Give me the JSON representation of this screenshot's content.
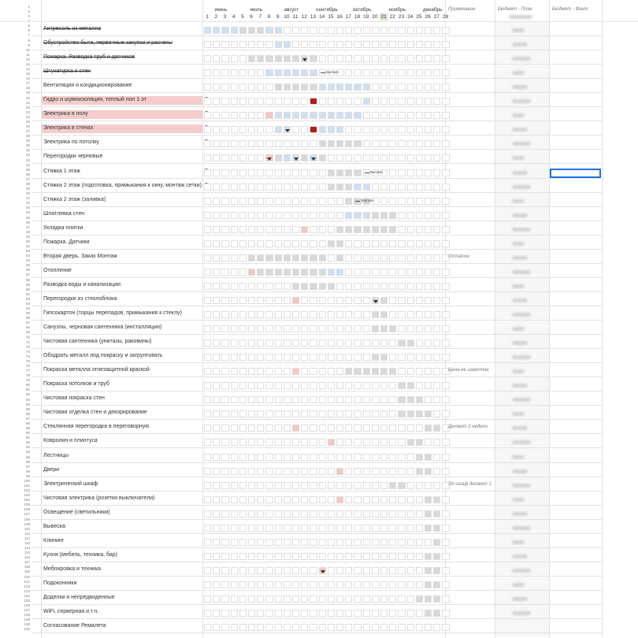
{
  "header": {
    "months": [
      "июнь",
      "июль",
      "август",
      "сентябрь",
      "октябрь",
      "ноябрь",
      "декабрь"
    ],
    "weeks": [
      "1",
      "2",
      "3",
      "4",
      "5",
      "6",
      "7",
      "8",
      "9",
      "10",
      "11",
      "12",
      "13",
      "14",
      "15",
      "16",
      "17",
      "18",
      "19",
      "20",
      "21",
      "22",
      "23",
      "24",
      "25",
      "26",
      "27",
      "28"
    ],
    "current_week": "21",
    "col_notes": "Примечание",
    "col_budget_plan": "Бюджет - План",
    "col_budget_fact": "Бюджет - Факт"
  },
  "row_numbers": [
    "1",
    "2",
    "3",
    "4",
    "5",
    "6",
    "7",
    "8",
    "9",
    "10",
    "11",
    "12",
    "13",
    "14",
    "15",
    "16",
    "17",
    "18",
    "19",
    "20",
    "21",
    "22",
    "23",
    "24",
    "25",
    "26",
    "27",
    "28",
    "29",
    "30",
    "31",
    "32",
    "33",
    "34",
    "35",
    "36",
    "37",
    "38",
    "39",
    "40",
    "41",
    "42",
    "43",
    "44",
    "45",
    "46",
    "47",
    "48",
    "49",
    "50",
    "51",
    "52",
    "53",
    "54",
    "55",
    "56",
    "57",
    "58",
    "59",
    "60",
    "61",
    "62",
    "63",
    "64",
    "65",
    "66",
    "67",
    "68",
    "69",
    "70",
    "71",
    "72",
    "73",
    "74",
    "75",
    "76",
    "77",
    "78",
    "79",
    "80",
    "81",
    "82",
    "83",
    "84",
    "85",
    "86",
    "87",
    "88",
    "89",
    "90",
    "91",
    "92",
    "93",
    "94",
    "95",
    "96",
    "97",
    "98",
    "99",
    "100",
    "101",
    "102",
    "103",
    "104",
    "105",
    "106",
    "107",
    "108",
    "109",
    "110",
    "111",
    "112",
    "113",
    "114",
    "115",
    "116",
    "117",
    "118",
    "119",
    "120",
    "121",
    "122",
    "123",
    "124",
    "125",
    "126",
    "127",
    "128",
    "129",
    "130",
    "131"
  ],
  "colors": {
    "blue": "#cfe0f2",
    "gray": "#d9d9d9",
    "pink": "#f4c7c3",
    "red": "#b81b1b",
    "task_highlight": "#f4cccc",
    "current_week": "#d9ead3",
    "selection": "#1a73e8"
  },
  "tasks": [
    {
      "name": "Антресоль из металла",
      "strike": true,
      "hl": false,
      "q": "",
      "note": "",
      "cells": {
        "1": "b",
        "2": "b",
        "3": "b",
        "4": "b",
        "5": "bg",
        "6": "bg",
        "7": "bg",
        "8": "b",
        "9": "b"
      }
    },
    {
      "name": "Обустройство быта, первичные закупки и расчеты",
      "strike": true,
      "hl": false,
      "q": "",
      "note": "",
      "cells": {
        "9": "b",
        "10": "b"
      }
    },
    {
      "name": "Пожарка. Разводка труб и датчиков",
      "strike": true,
      "hl": false,
      "q": "",
      "note": "",
      "cells": {
        "6": "g",
        "7": "g",
        "8": "g",
        "9": "g",
        "10": "g",
        "11": "g",
        "12": "g",
        "13": "g"
      },
      "marks": [
        12
      ]
    },
    {
      "name": "Штукатурка и стен",
      "strike": true,
      "hl": false,
      "q": "",
      "note": "",
      "cells": {
        "8": "b",
        "9": "b",
        "10": "b",
        "11": "b",
        "12": "b",
        "13": "b"
      },
      "arrow": {
        "week": 14,
        "text": "Samsen"
      }
    },
    {
      "name": "Вентиляция и кондиционирование",
      "strike": false,
      "hl": false,
      "q": "",
      "note": "",
      "cells": {
        "9": "g",
        "10": "g",
        "11": "g",
        "12": "g",
        "13": "g",
        "14": "b",
        "15": "b",
        "16": "b",
        "17": "b",
        "18": "b",
        "19": "b"
      }
    },
    {
      "name": "Гидро и шумоизоляция, теплый пол 1 эт",
      "strike": false,
      "hl": true,
      "q": "?",
      "note": "",
      "cells": {
        "13": "r",
        "19": "b"
      }
    },
    {
      "name": "Электрика в полу",
      "strike": false,
      "hl": true,
      "q": "?",
      "note": "",
      "cells": {
        "8": "p",
        "9": "b",
        "10": "b",
        "11": "b",
        "12": "b",
        "13": "b",
        "14": "b",
        "15": "b",
        "16": "b",
        "17": "b",
        "18": "b"
      }
    },
    {
      "name": "Электрика в стенах",
      "strike": false,
      "hl": true,
      "q": "?",
      "note": "",
      "cells": {
        "9": "b",
        "10": "b",
        "13": "r",
        "14": "b",
        "15": "b",
        "16": "b"
      },
      "marks": [
        10
      ]
    },
    {
      "name": "Электрика по потолку",
      "strike": false,
      "hl": false,
      "q": "?",
      "note": "",
      "cells": {
        "14": "g",
        "15": "g",
        "16": "g",
        "17": "g",
        "18": "g"
      }
    },
    {
      "name": "Перегородки черновые",
      "strike": false,
      "hl": false,
      "q": "",
      "note": "",
      "cells": {
        "8": "p",
        "9": "g",
        "10": "b",
        "11": "b",
        "12": "g",
        "13": "b",
        "14": "g"
      },
      "marks": [
        8,
        11,
        13
      ]
    },
    {
      "name": "Стяжка 1 этаж",
      "strike": false,
      "hl": false,
      "q": "?",
      "note": "",
      "cells": {
        "15": "g",
        "16": "g",
        "17": "g",
        "18": "g"
      },
      "arrow": {
        "week": 19,
        "text": "Samsen"
      }
    },
    {
      "name": "Стяжка 2 этаж (подготовка, примыкания к окну, монтаж сетки)",
      "strike": false,
      "hl": false,
      "q": "?",
      "note": "",
      "cells": {
        "15": "g",
        "16": "g",
        "17": "g",
        "18": "b",
        "19": "b"
      }
    },
    {
      "name": "Стяжка 2 этаж (заливка)",
      "strike": false,
      "hl": false,
      "q": "",
      "note": "",
      "cells": {
        "17": "g",
        "18": "g",
        "19": "g"
      },
      "arrow": {
        "week": 18,
        "text": "Samsen"
      }
    },
    {
      "name": "Шпатлевка стен",
      "strike": false,
      "hl": false,
      "q": "",
      "note": "",
      "cells": {
        "17": "b",
        "18": "b",
        "19": "b",
        "20": "g",
        "21": "g",
        "22": "g"
      }
    },
    {
      "name": "Укладка плитки",
      "strike": false,
      "hl": false,
      "q": "",
      "note": "",
      "cells": {
        "12": "p",
        "16": "g",
        "17": "g",
        "18": "g",
        "19": "g",
        "20": "g",
        "21": "g",
        "22": "g"
      }
    },
    {
      "name": "Пожарка. Датчики",
      "strike": false,
      "hl": false,
      "q": "",
      "note": "",
      "cells": {
        "15": "g",
        "16": "g"
      }
    },
    {
      "name": "Вторая дверь. Заказ Монтаж",
      "strike": false,
      "hl": false,
      "q": "",
      "note": "Остаток",
      "cells": {
        "6": "g",
        "7": "g",
        "8": "g",
        "9": "g",
        "10": "g",
        "11": "g",
        "12": "g",
        "13": "g",
        "14": "g",
        "16": "g"
      }
    },
    {
      "name": "Отопление",
      "strike": false,
      "hl": false,
      "q": "",
      "note": "",
      "cells": {
        "6": "p",
        "7": "g",
        "8": "g",
        "9": "g",
        "10": "g",
        "11": "g",
        "12": "g",
        "13": "g",
        "14": "g",
        "15": "b",
        "16": "b"
      }
    },
    {
      "name": "Разводка воды и канализации",
      "strike": false,
      "hl": false,
      "q": "",
      "note": "",
      "cells": {
        "11": "g",
        "12": "g",
        "13": "g",
        "14": "g",
        "15": "g"
      }
    },
    {
      "name": "Перегородки из стеклоблока",
      "strike": false,
      "hl": false,
      "q": "",
      "note": "",
      "cells": {
        "11": "p",
        "20": "g",
        "21": "g"
      },
      "marks": [
        20
      ]
    },
    {
      "name": "Гипсокартон (торцы перепадов, примыкания к стеклу)",
      "strike": false,
      "hl": false,
      "q": "",
      "note": "",
      "cells": {
        "20": "g",
        "21": "g"
      }
    },
    {
      "name": "Санузлы, черновая сантехника (инсталляции)",
      "strike": false,
      "hl": false,
      "q": "",
      "note": "",
      "cells": {
        "20": "g",
        "21": "g",
        "22": "g"
      }
    },
    {
      "name": "Чистовая сантехника (унитазы, раковины)",
      "strike": false,
      "hl": false,
      "q": "",
      "note": "",
      "cells": {
        "23": "g",
        "24": "g"
      }
    },
    {
      "name": "Ободрать металл под покраску и загрунтовать",
      "strike": false,
      "hl": false,
      "q": "",
      "note": "",
      "cells": {
        "20": "g",
        "21": "g"
      }
    },
    {
      "name": "Покраска металла огнезащитной краской",
      "strike": false,
      "hl": false,
      "q": "",
      "note": "Цена не известна",
      "cells": {
        "11": "p",
        "17": "g",
        "18": "g",
        "19": "g",
        "20": "g",
        "21": "g",
        "22": "g"
      }
    },
    {
      "name": "Покраска потолков и труб",
      "strike": false,
      "hl": false,
      "q": "",
      "note": "",
      "cells": {
        "23": "g",
        "24": "g"
      }
    },
    {
      "name": "Чистовая покраска стен",
      "strike": false,
      "hl": false,
      "q": "",
      "note": "",
      "cells": {
        "23": "g",
        "24": "g",
        "25": "g"
      }
    },
    {
      "name": "Чистовая отделка стен и декорирование",
      "strike": false,
      "hl": false,
      "q": "",
      "note": "",
      "cells": {
        "23": "g",
        "24": "g",
        "25": "g",
        "26": "g"
      }
    },
    {
      "name": "Стеклянная перегородка в переговорную",
      "strike": false,
      "hl": false,
      "q": "",
      "note": "Делают 2 недели",
      "cells": {
        "11": "p",
        "26": "g",
        "27": "g"
      }
    },
    {
      "name": "Ковролин и плинтуса",
      "strike": false,
      "hl": false,
      "q": "",
      "note": "",
      "cells": {
        "15": "p",
        "24": "g",
        "25": "g"
      }
    },
    {
      "name": "Лестницы",
      "strike": false,
      "hl": false,
      "q": "",
      "note": "",
      "cells": {
        "25": "g",
        "26": "g"
      }
    },
    {
      "name": "Двери",
      "strike": false,
      "hl": false,
      "q": "",
      "note": "",
      "cells": {
        "16": "p",
        "25": "g",
        "26": "g"
      }
    },
    {
      "name": "Электрический шкаф",
      "strike": false,
      "hl": false,
      "q": "",
      "note": "Эл шкаф делают 1",
      "cells": {
        "22": "g",
        "23": "g"
      }
    },
    {
      "name": "Чистовая электрика (розетки выключатели)",
      "strike": false,
      "hl": false,
      "q": "",
      "note": "",
      "cells": {
        "16": "p",
        "26": "g",
        "27": "g"
      }
    },
    {
      "name": "Освещение (светильники)",
      "strike": false,
      "hl": false,
      "q": "",
      "note": "",
      "cells": {
        "26": "g",
        "27": "g"
      }
    },
    {
      "name": "Вывеска",
      "strike": false,
      "hl": false,
      "q": "",
      "note": "",
      "cells": {
        "26": "g",
        "27": "g"
      }
    },
    {
      "name": "Клининг",
      "strike": false,
      "hl": false,
      "q": "",
      "note": "",
      "cells": {
        "27": "g"
      }
    },
    {
      "name": "Кухня (мебель, техника, бар)",
      "strike": false,
      "hl": false,
      "q": "",
      "note": "",
      "cells": {
        "26": "g",
        "27": "g"
      }
    },
    {
      "name": "Меблировка и техника",
      "strike": false,
      "hl": false,
      "q": "",
      "note": "",
      "cells": {
        "14": "p",
        "26": "g",
        "27": "g"
      },
      "marks": [
        14
      ]
    },
    {
      "name": "Подоконники",
      "strike": false,
      "hl": false,
      "q": "",
      "note": "",
      "cells": {
        "26": "g",
        "27": "g"
      }
    },
    {
      "name": "Доделки и непредвиденные",
      "strike": false,
      "hl": false,
      "q": "",
      "note": "",
      "cells": {
        "25": "g",
        "26": "g",
        "27": "g"
      }
    },
    {
      "name": "WiFi, серверная и т.п.",
      "strike": false,
      "hl": false,
      "q": "",
      "note": "",
      "cells": {
        "26": "g",
        "27": "g"
      }
    },
    {
      "name": "Согласование Ремалета",
      "strike": false,
      "hl": false,
      "q": "",
      "note": "",
      "cells": {}
    }
  ]
}
